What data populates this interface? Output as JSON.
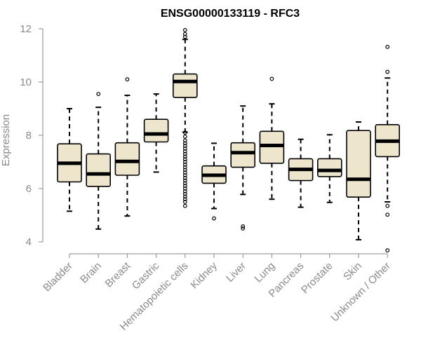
{
  "chart_data": {
    "type": "boxplot",
    "title": "ENSG00000133119 - RFC3",
    "xlabel": "",
    "ylabel": "Expression",
    "ylim": [
      4,
      12
    ],
    "yticks": [
      4,
      6,
      8,
      10,
      12
    ],
    "colors": {
      "box_fill": "#ede5cc",
      "stroke": "#000000",
      "axis": "#8a8a8a",
      "text": "#8a8a8a"
    },
    "categories": [
      "Bladder",
      "Brain",
      "Breast",
      "Gastric",
      "Hematopoietic cells",
      "Kidney",
      "Liver",
      "Lung",
      "Pancreas",
      "Prostate",
      "Skin",
      "Unknown / Other"
    ],
    "boxes": [
      {
        "category": "Bladder",
        "whisker_low": 5.15,
        "q1": 6.25,
        "median": 6.95,
        "q3": 7.68,
        "whisker_high": 9.0,
        "outliers": []
      },
      {
        "category": "Brain",
        "whisker_low": 4.48,
        "q1": 6.08,
        "median": 6.55,
        "q3": 7.3,
        "whisker_high": 9.05,
        "outliers": [
          9.55
        ]
      },
      {
        "category": "Breast",
        "whisker_low": 4.97,
        "q1": 6.5,
        "median": 7.02,
        "q3": 7.72,
        "whisker_high": 9.5,
        "outliers": [
          10.1
        ]
      },
      {
        "category": "Gastric",
        "whisker_low": 6.62,
        "q1": 7.75,
        "median": 8.05,
        "q3": 8.6,
        "whisker_high": 9.55,
        "outliers": []
      },
      {
        "category": "Hematopoietic cells",
        "whisker_low": 8.12,
        "q1": 9.42,
        "median": 10.02,
        "q3": 10.3,
        "whisker_high": 11.6,
        "outliers": [
          11.95,
          11.8,
          11.7,
          8.1,
          7.95,
          7.8,
          7.7,
          7.6,
          7.5,
          7.4,
          7.3,
          7.2,
          7.1,
          7.0,
          6.9,
          6.8,
          6.7,
          6.6,
          6.5,
          6.4,
          6.3,
          6.2,
          6.1,
          6.0,
          5.9,
          5.8,
          5.7,
          5.6,
          5.5,
          5.35
        ]
      },
      {
        "category": "Kidney",
        "whisker_low": 5.25,
        "q1": 6.2,
        "median": 6.5,
        "q3": 6.85,
        "whisker_high": 7.7,
        "outliers": [
          4.88
        ]
      },
      {
        "category": "Liver",
        "whisker_low": 5.78,
        "q1": 6.8,
        "median": 7.35,
        "q3": 7.72,
        "whisker_high": 9.1,
        "outliers": [
          4.58,
          4.5
        ]
      },
      {
        "category": "Lung",
        "whisker_low": 5.6,
        "q1": 6.95,
        "median": 7.62,
        "q3": 8.15,
        "whisker_high": 9.18,
        "outliers": [
          10.12
        ]
      },
      {
        "category": "Pancreas",
        "whisker_low": 5.3,
        "q1": 6.3,
        "median": 6.72,
        "q3": 7.12,
        "whisker_high": 7.85,
        "outliers": []
      },
      {
        "category": "Prostate",
        "whisker_low": 5.48,
        "q1": 6.45,
        "median": 6.68,
        "q3": 7.12,
        "whisker_high": 8.02,
        "outliers": []
      },
      {
        "category": "Skin",
        "whisker_low": 4.08,
        "q1": 5.68,
        "median": 6.35,
        "q3": 8.18,
        "whisker_high": 8.5,
        "outliers": []
      },
      {
        "category": "Unknown / Other",
        "whisker_low": 5.5,
        "q1": 7.2,
        "median": 7.78,
        "q3": 8.4,
        "whisker_high": 10.15,
        "outliers": [
          11.32,
          10.38,
          5.35,
          5.02,
          3.68
        ]
      }
    ]
  }
}
